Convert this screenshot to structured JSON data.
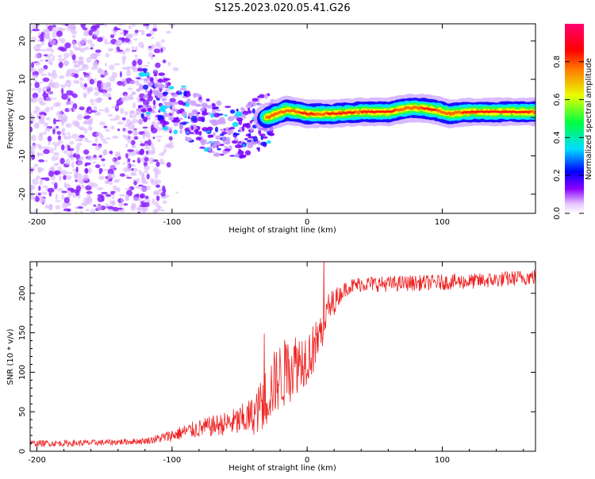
{
  "title": "S125.2023.020.05.41.G26",
  "spectrogram": {
    "xlabel": "Height of straight line (km)",
    "ylabel": "Frequency (Hz)",
    "xlim": [
      -205,
      169
    ],
    "ylim": [
      -25,
      24.5
    ],
    "x_ticks": [
      -200,
      -100,
      0,
      100
    ],
    "y_ticks": [
      -20,
      -10,
      0,
      10,
      20
    ],
    "ridge": {
      "description_points_x": [
        -205,
        -170,
        -130,
        -110,
        -95,
        -80,
        -60,
        -45,
        -30,
        -15,
        0,
        20,
        40,
        60,
        75,
        85,
        95,
        105,
        120,
        140,
        169
      ],
      "description_points_y": [
        4,
        3,
        6,
        5,
        2,
        -1,
        -4,
        -4,
        0,
        2,
        1,
        1,
        1.5,
        1.5,
        2.5,
        2.5,
        2,
        1,
        1.5,
        1.5,
        1.5
      ]
    }
  },
  "colorbar": {
    "label": "Normalized spectral amplitude",
    "ticks": [
      "0.0",
      "0.2",
      "0.4",
      "0.6",
      "0.8"
    ],
    "range": [
      0,
      1
    ]
  },
  "chart_data": {
    "type": "line",
    "xlabel": "Height of straight line (km)",
    "ylabel": "SNR (10 * v/v)",
    "xlim": [
      -205,
      169
    ],
    "ylim": [
      0,
      240
    ],
    "x_ticks": [
      -200,
      -100,
      0,
      100
    ],
    "y_ticks": [
      0,
      50,
      100,
      150,
      200
    ],
    "color": "#ee2222",
    "trend_x": [
      -205,
      -180,
      -150,
      -120,
      -110,
      -100,
      -90,
      -70,
      -50,
      -40,
      -35,
      -30,
      -25,
      -20,
      -15,
      -10,
      -5,
      0,
      5,
      10,
      15,
      20,
      25,
      30,
      40,
      60,
      80,
      100,
      120,
      140,
      160,
      169
    ],
    "trend_y": [
      10,
      10,
      11,
      13,
      16,
      20,
      25,
      32,
      38,
      45,
      55,
      70,
      85,
      95,
      100,
      110,
      115,
      120,
      130,
      150,
      175,
      190,
      200,
      208,
      212,
      212,
      213,
      214,
      215,
      217,
      220,
      221
    ],
    "noise_amp_x": [
      -205,
      -120,
      -100,
      -60,
      -40,
      -30,
      -15,
      0,
      15,
      25,
      60,
      169
    ],
    "noise_amp_y": [
      4,
      4,
      8,
      15,
      25,
      40,
      45,
      35,
      25,
      10,
      10,
      10
    ]
  }
}
